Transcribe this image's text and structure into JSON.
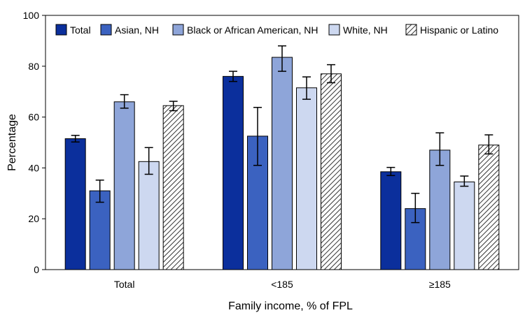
{
  "chart_data": {
    "type": "bar",
    "title": "",
    "xlabel": "Family income, % of FPL",
    "ylabel": "Percentage",
    "ylim": [
      0,
      100
    ],
    "yticks": [
      0,
      20,
      40,
      60,
      80,
      100
    ],
    "grid": false,
    "legend_position": "top",
    "categories": [
      "Total",
      "<185",
      "≥185"
    ],
    "series": [
      {
        "name": "Total",
        "color": "#0b2f9c",
        "pattern": "solid",
        "values": [
          51.5,
          76,
          38.5
        ],
        "ci_low": [
          50.2,
          74,
          37
        ],
        "ci_high": [
          52.8,
          78,
          40.2
        ]
      },
      {
        "name": "Asian, NH",
        "color": "#3b62c0",
        "pattern": "solid",
        "values": [
          31,
          52.5,
          24
        ],
        "ci_low": [
          26.5,
          41,
          18.5
        ],
        "ci_high": [
          35.2,
          63.8,
          30
        ]
      },
      {
        "name": "Black or African American, NH",
        "color": "#8ea5d9",
        "pattern": "solid",
        "values": [
          66,
          83.5,
          47
        ],
        "ci_low": [
          63.5,
          78,
          41
        ],
        "ci_high": [
          68.8,
          88,
          53.8
        ]
      },
      {
        "name": "White, NH",
        "color": "#cdd8f0",
        "pattern": "solid",
        "values": [
          42.5,
          71.5,
          34.5
        ],
        "ci_low": [
          37.5,
          67,
          32.8
        ],
        "ci_high": [
          48,
          75.8,
          36.8
        ]
      },
      {
        "name": "Hispanic or Latino",
        "color": "#ffffff",
        "pattern": "hatch",
        "values": [
          64.5,
          77,
          49
        ],
        "ci_low": [
          62.5,
          73.5,
          45.5
        ],
        "ci_high": [
          66.2,
          80.6,
          53
        ]
      }
    ]
  }
}
